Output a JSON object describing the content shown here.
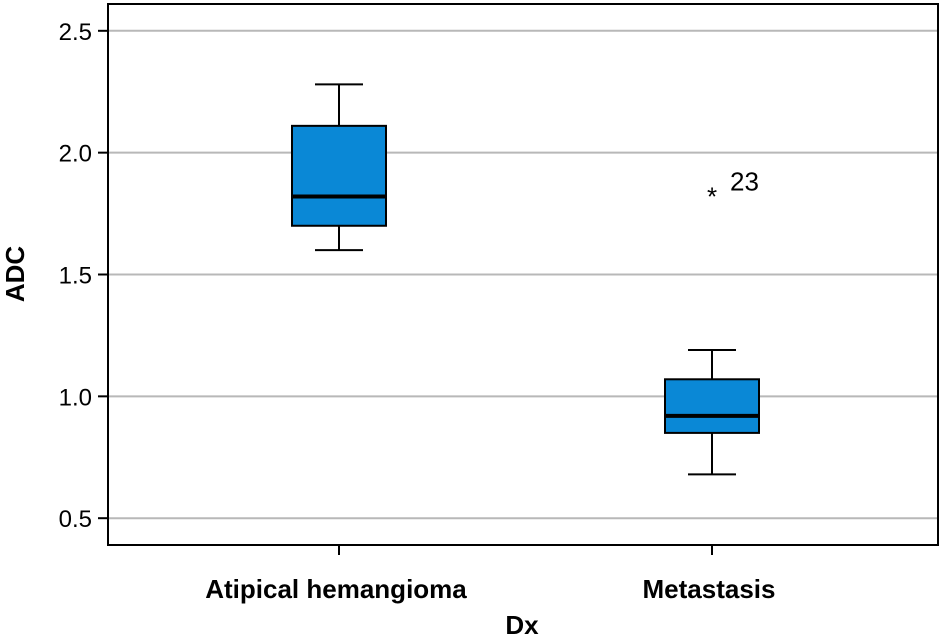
{
  "chart_data": {
    "type": "box",
    "xlabel": "Dx",
    "ylabel": "ADC",
    "ylim": [
      0.39,
      2.61
    ],
    "yticks": [
      0.5,
      1.0,
      1.5,
      2.0,
      2.5
    ],
    "ytick_labels": [
      "0.5",
      "1.0",
      "1.5",
      "2.0",
      "2.5"
    ],
    "grid": true,
    "categories": [
      "Atipical hemangioma",
      "Metastasis"
    ],
    "boxes": [
      {
        "min": 1.6,
        "q1": 1.7,
        "median": 1.82,
        "q3": 2.11,
        "max": 2.28,
        "outliers": []
      },
      {
        "min": 0.68,
        "q1": 0.85,
        "median": 0.92,
        "q3": 1.07,
        "max": 1.19,
        "outliers": [
          {
            "value": 1.84,
            "label": "23",
            "marker": "*"
          }
        ]
      }
    ],
    "colors": {
      "box_fill": "#0a88d6",
      "stroke": "#000000",
      "grid": "#b8b8b8"
    }
  }
}
